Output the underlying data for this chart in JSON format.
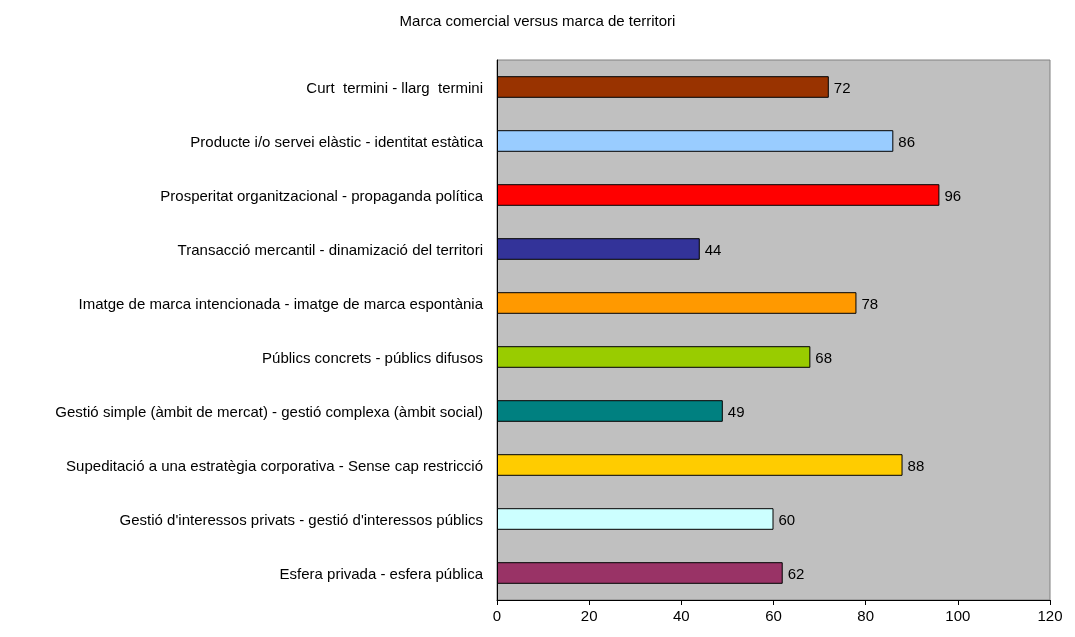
{
  "chart_data": {
    "type": "bar",
    "orientation": "horizontal",
    "title": "Marca comercial versus marca de territori",
    "categories": [
      "Curt  termini - llarg  termini",
      "Producte i/o servei elàstic - identitat estàtica",
      "Prosperitat organitzacional - propaganda política",
      "Transacció mercantil - dinamizació del territori",
      "Imatge de marca intencionada - imatge de marca espontània",
      "Públics concrets - públics difusos",
      "Gestió simple (àmbit de mercat) - gestió complexa (àmbit social)",
      "Supeditació a una estratègia corporativa - Sense cap restricció",
      "Gestió d'interessos privats - gestió d'interessos públics",
      "Esfera privada - esfera pública"
    ],
    "values": [
      72,
      86,
      96,
      44,
      78,
      68,
      49,
      88,
      60,
      62
    ],
    "colors": [
      "#993300",
      "#99ccff",
      "#ff0000",
      "#333399",
      "#ff9900",
      "#99cc00",
      "#008080",
      "#ffcc00",
      "#ccffff",
      "#993366"
    ],
    "xlim": [
      0,
      120
    ],
    "xticks": [
      0,
      20,
      40,
      60,
      80,
      100,
      120
    ],
    "data_labels": true
  }
}
